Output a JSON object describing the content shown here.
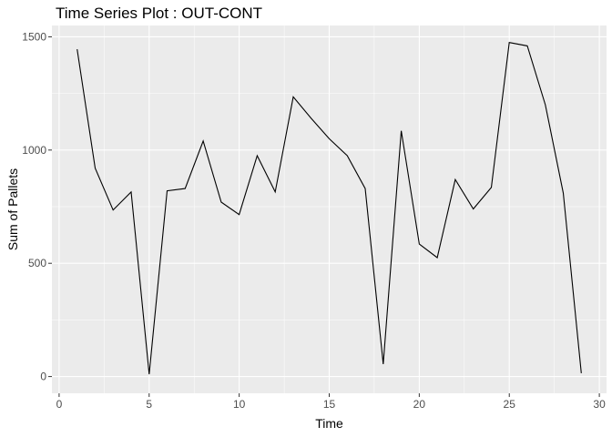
{
  "chart_data": {
    "type": "line",
    "title": "Time Series Plot : OUT-CONT",
    "xlabel": "Time",
    "ylabel": "Sum of Pallets",
    "x": [
      1,
      2,
      3,
      4,
      5,
      6,
      7,
      8,
      9,
      10,
      11,
      12,
      13,
      14,
      15,
      16,
      17,
      18,
      19,
      20,
      21,
      22,
      23,
      24,
      25,
      26,
      27,
      28,
      29
    ],
    "y": [
      1445,
      920,
      735,
      815,
      10,
      820,
      830,
      1040,
      770,
      715,
      975,
      815,
      1235,
      1140,
      1050,
      975,
      830,
      55,
      1085,
      585,
      525,
      870,
      740,
      835,
      1475,
      1460,
      1200,
      810,
      15
    ],
    "xlim": [
      -0.4,
      30.4
    ],
    "ylim": [
      -74,
      1550
    ],
    "x_ticks": [
      0,
      5,
      10,
      15,
      20,
      25,
      30
    ],
    "y_ticks": [
      0,
      500,
      1000,
      1500
    ],
    "grid": true,
    "background": "#ebebeb",
    "line_color": "#000000"
  }
}
